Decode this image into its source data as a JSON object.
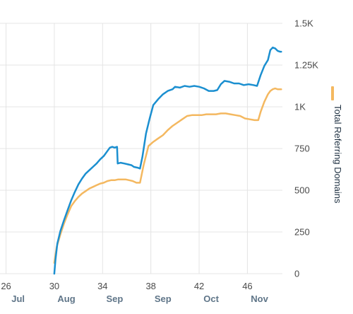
{
  "chart_data": {
    "type": "line",
    "title": "",
    "xlabel": "",
    "ylabel": "Total Referring Domains",
    "ylim": [
      0,
      1500
    ],
    "y_ticks": [
      0,
      250,
      500,
      750,
      1000,
      1250,
      1500
    ],
    "y_tick_labels": [
      "0",
      "250",
      "500",
      "750",
      "1K",
      "1.25K",
      "1.5K"
    ],
    "x_week_ticks": [
      26,
      30,
      34,
      38,
      42,
      46
    ],
    "x_week_tick_labels": [
      "26",
      "30",
      "34",
      "38",
      "42",
      "46"
    ],
    "x_month_labels": [
      {
        "week": 26,
        "label": "Jul"
      },
      {
        "week": 30,
        "label": "Aug"
      },
      {
        "week": 34,
        "label": "Sep"
      },
      {
        "week": 38,
        "label": "Sep"
      },
      {
        "week": 42,
        "label": "Oct"
      },
      {
        "week": 46,
        "label": "Nov"
      }
    ],
    "xlim": [
      25.5,
      48.9
    ],
    "grid": true,
    "legend_placement": "right",
    "series": [
      {
        "name": "",
        "color": "#1b8fd0",
        "points": [
          [
            30.0,
            0
          ],
          [
            30.1,
            85
          ],
          [
            30.25,
            180
          ],
          [
            30.5,
            255
          ],
          [
            30.8,
            320
          ],
          [
            31.1,
            380
          ],
          [
            31.4,
            440
          ],
          [
            31.7,
            490
          ],
          [
            32.0,
            535
          ],
          [
            32.3,
            570
          ],
          [
            32.6,
            600
          ],
          [
            32.9,
            620
          ],
          [
            33.2,
            640
          ],
          [
            33.5,
            660
          ],
          [
            33.8,
            685
          ],
          [
            34.1,
            705
          ],
          [
            34.35,
            730
          ],
          [
            34.6,
            755
          ],
          [
            34.8,
            760
          ],
          [
            35.0,
            755
          ],
          [
            35.2,
            760
          ],
          [
            35.25,
            660
          ],
          [
            35.5,
            665
          ],
          [
            35.8,
            660
          ],
          [
            36.1,
            655
          ],
          [
            36.4,
            650
          ],
          [
            36.6,
            640
          ],
          [
            36.9,
            635
          ],
          [
            37.1,
            630
          ],
          [
            37.3,
            700
          ],
          [
            37.6,
            840
          ],
          [
            37.9,
            930
          ],
          [
            38.2,
            1010
          ],
          [
            38.6,
            1045
          ],
          [
            39.0,
            1075
          ],
          [
            39.4,
            1095
          ],
          [
            39.8,
            1105
          ],
          [
            40.0,
            1120
          ],
          [
            40.4,
            1115
          ],
          [
            40.8,
            1125
          ],
          [
            41.2,
            1120
          ],
          [
            41.6,
            1125
          ],
          [
            42.0,
            1120
          ],
          [
            42.4,
            1110
          ],
          [
            42.8,
            1095
          ],
          [
            43.2,
            1095
          ],
          [
            43.5,
            1100
          ],
          [
            43.8,
            1135
          ],
          [
            44.1,
            1155
          ],
          [
            44.5,
            1150
          ],
          [
            44.9,
            1140
          ],
          [
            45.3,
            1140
          ],
          [
            45.7,
            1130
          ],
          [
            46.1,
            1135
          ],
          [
            46.5,
            1130
          ],
          [
            46.8,
            1125
          ],
          [
            47.1,
            1190
          ],
          [
            47.4,
            1245
          ],
          [
            47.7,
            1280
          ],
          [
            47.9,
            1340
          ],
          [
            48.1,
            1355
          ],
          [
            48.3,
            1350
          ],
          [
            48.5,
            1335
          ],
          [
            48.7,
            1330
          ],
          [
            48.8,
            1330
          ]
        ]
      },
      {
        "name": "",
        "color": "#f4b860",
        "points": [
          [
            30.0,
            65
          ],
          [
            30.2,
            160
          ],
          [
            30.5,
            235
          ],
          [
            30.8,
            300
          ],
          [
            31.1,
            355
          ],
          [
            31.4,
            405
          ],
          [
            31.7,
            435
          ],
          [
            32.0,
            460
          ],
          [
            32.3,
            480
          ],
          [
            32.6,
            495
          ],
          [
            32.9,
            510
          ],
          [
            33.2,
            520
          ],
          [
            33.5,
            530
          ],
          [
            33.8,
            540
          ],
          [
            34.1,
            545
          ],
          [
            34.4,
            555
          ],
          [
            34.7,
            560
          ],
          [
            35.0,
            560
          ],
          [
            35.3,
            565
          ],
          [
            35.6,
            565
          ],
          [
            35.9,
            565
          ],
          [
            36.2,
            560
          ],
          [
            36.5,
            555
          ],
          [
            36.8,
            545
          ],
          [
            37.1,
            545
          ],
          [
            37.4,
            650
          ],
          [
            37.8,
            765
          ],
          [
            38.2,
            790
          ],
          [
            38.6,
            810
          ],
          [
            39.0,
            830
          ],
          [
            39.4,
            860
          ],
          [
            39.8,
            885
          ],
          [
            40.2,
            905
          ],
          [
            40.6,
            925
          ],
          [
            41.0,
            945
          ],
          [
            41.4,
            950
          ],
          [
            41.8,
            950
          ],
          [
            42.2,
            950
          ],
          [
            42.6,
            955
          ],
          [
            43.0,
            955
          ],
          [
            43.4,
            955
          ],
          [
            43.8,
            960
          ],
          [
            44.2,
            960
          ],
          [
            44.6,
            955
          ],
          [
            45.0,
            950
          ],
          [
            45.4,
            945
          ],
          [
            45.8,
            930
          ],
          [
            46.2,
            925
          ],
          [
            46.6,
            920
          ],
          [
            46.9,
            920
          ],
          [
            47.1,
            970
          ],
          [
            47.4,
            1030
          ],
          [
            47.7,
            1075
          ],
          [
            47.9,
            1095
          ],
          [
            48.1,
            1105
          ],
          [
            48.3,
            1110
          ],
          [
            48.5,
            1105
          ],
          [
            48.8,
            1105
          ]
        ]
      }
    ]
  }
}
